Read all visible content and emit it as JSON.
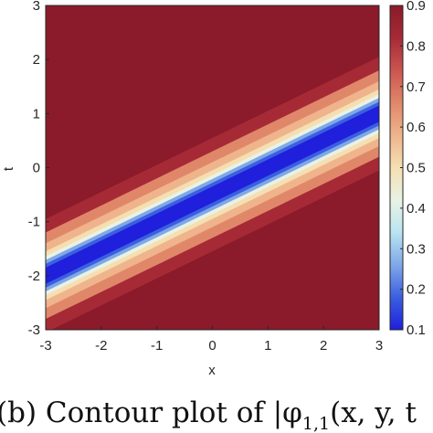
{
  "chart_data": {
    "type": "contour",
    "xlabel": "x",
    "ylabel": "t",
    "xlim": [
      -3,
      3
    ],
    "ylim": [
      -3,
      3
    ],
    "xticks": [
      "-3",
      "-2",
      "-1",
      "0",
      "1",
      "2",
      "3"
    ],
    "yticks": [
      "-3",
      "-2",
      "-1",
      "0",
      "1",
      "2",
      "3"
    ],
    "colorbar": {
      "range": [
        0.1,
        0.9
      ],
      "ticks": [
        "0.1",
        "0.2",
        "0.3",
        "0.4",
        "0.5",
        "0.6",
        "0.7",
        "0.8",
        "0.9"
      ],
      "colormap": [
        "#1f1fdc",
        "#3b5fe0",
        "#7fa8e8",
        "#b9e4f0",
        "#e9f2e4",
        "#f5dfb2",
        "#efb48c",
        "#e0876a",
        "#cc5550",
        "#a62a36",
        "#8b1a2a"
      ]
    },
    "valley": {
      "description_values": {
        "slope_t_per_x": 0.5,
        "t_intercept_at_x0": -0.5
      },
      "min_value": 0.1,
      "max_value": 0.9
    },
    "contour_levels": [
      0.1,
      0.2,
      0.3,
      0.4,
      0.5,
      0.6,
      0.7,
      0.8
    ]
  },
  "caption": {
    "text": "(b) Contour plot of |φ",
    "subscript": "1,1",
    "tail": "(x, y, t"
  }
}
